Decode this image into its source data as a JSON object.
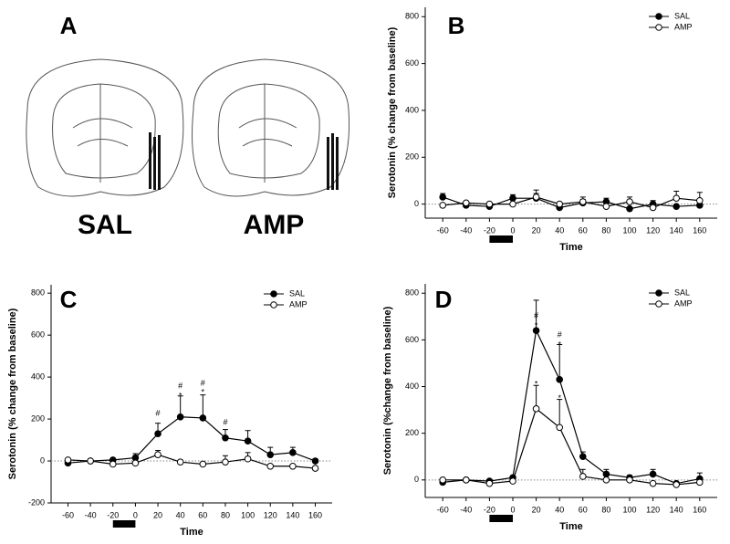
{
  "panel_a": {
    "label": "A",
    "captions": [
      "SAL",
      "AMP"
    ]
  },
  "chart_data": [
    {
      "type": "line",
      "panel": "B",
      "x_label": "Time",
      "y_label": "Serotonin (% change from baseline)",
      "x": [
        -60,
        -40,
        -20,
        0,
        20,
        40,
        60,
        80,
        100,
        120,
        140,
        160
      ],
      "xlim": [
        -75,
        175
      ],
      "xticks": [
        -60,
        -40,
        -20,
        0,
        20,
        40,
        60,
        80,
        100,
        120,
        140,
        160
      ],
      "ylim": [
        -60,
        840
      ],
      "yticks": [
        0,
        200,
        400,
        600,
        800
      ],
      "zero_line": true,
      "legend": "upper right",
      "infusion": [
        -20,
        0
      ],
      "series": [
        {
          "name": "SAL",
          "color": "#000000",
          "filled": true,
          "values": [
            30,
            -5,
            -10,
            25,
            25,
            -15,
            5,
            10,
            -20,
            0,
            -10,
            -5
          ],
          "errors": [
            15,
            5,
            5,
            15,
            35,
            5,
            25,
            15,
            5,
            15,
            5,
            5
          ]
        },
        {
          "name": "AMP",
          "color": "#000000",
          "filled": false,
          "values": [
            -5,
            5,
            0,
            0,
            30,
            0,
            10,
            -10,
            10,
            -15,
            25,
            15
          ],
          "errors": [
            5,
            5,
            5,
            5,
            15,
            5,
            10,
            5,
            20,
            5,
            30,
            35
          ]
        }
      ],
      "annotations": []
    },
    {
      "type": "line",
      "panel": "C",
      "x_label": "Time",
      "y_label": "Serotonin (% change from baseline)",
      "x": [
        -60,
        -40,
        -20,
        0,
        20,
        40,
        60,
        80,
        100,
        120,
        140,
        160
      ],
      "xlim": [
        -75,
        175
      ],
      "xticks": [
        -60,
        -40,
        -20,
        0,
        20,
        40,
        60,
        80,
        100,
        120,
        140,
        160
      ],
      "ylim": [
        -200,
        840
      ],
      "yticks": [
        -200,
        0,
        200,
        400,
        600,
        800
      ],
      "zero_line": true,
      "legend": "upper right",
      "infusion": [
        -20,
        0
      ],
      "series": [
        {
          "name": "SAL",
          "color": "#000000",
          "filled": true,
          "values": [
            -10,
            0,
            5,
            15,
            130,
            210,
            205,
            110,
            95,
            30,
            40,
            0
          ],
          "errors": [
            5,
            5,
            5,
            20,
            50,
            100,
            110,
            40,
            50,
            35,
            25,
            10
          ]
        },
        {
          "name": "AMP",
          "color": "#000000",
          "filled": false,
          "values": [
            5,
            0,
            -15,
            -10,
            30,
            -5,
            -15,
            -5,
            10,
            -25,
            -25,
            -35
          ],
          "errors": [
            5,
            5,
            5,
            5,
            20,
            5,
            5,
            30,
            30,
            5,
            5,
            5
          ]
        }
      ],
      "annotations": [
        {
          "text": "#",
          "x": 20,
          "y": 226
        },
        {
          "text": "#",
          "x": 40,
          "y": 356
        },
        {
          "text": "*",
          "x": 40,
          "y": 309
        },
        {
          "text": "#",
          "x": 60,
          "y": 370
        },
        {
          "text": "*",
          "x": 60,
          "y": 326
        },
        {
          "text": "#",
          "x": 80,
          "y": 183
        }
      ]
    },
    {
      "type": "line",
      "panel": "D",
      "x_label": "Time",
      "y_label": "Serotonin (%change from baseline)",
      "x": [
        -60,
        -40,
        -20,
        0,
        20,
        40,
        60,
        80,
        100,
        120,
        140,
        160
      ],
      "xlim": [
        -75,
        175
      ],
      "xticks": [
        -60,
        -40,
        -20,
        0,
        20,
        40,
        60,
        80,
        100,
        120,
        140,
        160
      ],
      "ylim": [
        -75,
        840
      ],
      "yticks": [
        0,
        200,
        400,
        600,
        800
      ],
      "zero_line": true,
      "legend": "upper right",
      "infusion": [
        -20,
        0
      ],
      "series": [
        {
          "name": "SAL",
          "color": "#000000",
          "filled": true,
          "values": [
            -10,
            0,
            -5,
            10,
            640,
            430,
            100,
            25,
            10,
            25,
            -15,
            5
          ],
          "errors": [
            5,
            5,
            5,
            5,
            130,
            150,
            20,
            20,
            10,
            20,
            5,
            25
          ]
        },
        {
          "name": "AMP",
          "color": "#000000",
          "filled": false,
          "values": [
            0,
            0,
            -15,
            -5,
            305,
            225,
            15,
            0,
            0,
            -15,
            -20,
            -10
          ],
          "errors": [
            5,
            5,
            5,
            5,
            100,
            120,
            30,
            5,
            5,
            5,
            5,
            5
          ]
        }
      ],
      "annotations": [
        {
          "text": "#",
          "x": 20,
          "y": 703
        },
        {
          "text": "*",
          "x": 20,
          "y": 660
        },
        {
          "text": "*",
          "x": 20,
          "y": 410
        },
        {
          "text": "#",
          "x": 40,
          "y": 620
        },
        {
          "text": "*",
          "x": 40,
          "y": 578
        },
        {
          "text": "*",
          "x": 40,
          "y": 348
        }
      ]
    }
  ]
}
